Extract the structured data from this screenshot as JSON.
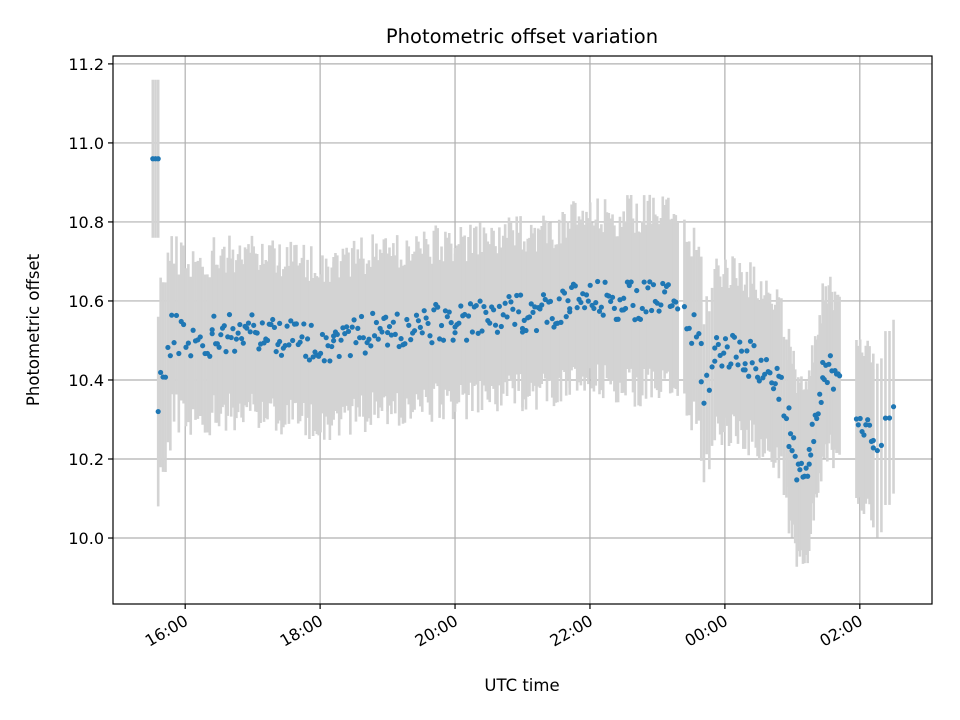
{
  "chart_data": {
    "type": "scatter",
    "title": "Photometric offset variation",
    "xlabel": "UTC time",
    "ylabel": "Photometric offset",
    "grid": true,
    "xlim_hours": [
      14.93,
      27.07
    ],
    "ylim": [
      9.833,
      11.22
    ],
    "x_ticks": [
      {
        "h": 16,
        "label": "16:00"
      },
      {
        "h": 18,
        "label": "18:00"
      },
      {
        "h": 20,
        "label": "20:00"
      },
      {
        "h": 22,
        "label": "22:00"
      },
      {
        "h": 24,
        "label": "00:00"
      },
      {
        "h": 26,
        "label": "02:00"
      }
    ],
    "y_ticks": [
      {
        "v": 10.0,
        "label": "10.0"
      },
      {
        "v": 10.2,
        "label": "10.2"
      },
      {
        "v": 10.4,
        "label": "10.4"
      },
      {
        "v": 10.6,
        "label": "10.6"
      },
      {
        "v": 10.8,
        "label": "10.8"
      },
      {
        "v": 11.0,
        "label": "11.0"
      },
      {
        "v": 11.2,
        "label": "11.2"
      }
    ],
    "colors": {
      "marker": "#1f77b4",
      "errorbar": "#d3d3d3",
      "grid": "#b0b0b0"
    },
    "segments": [
      {
        "t0": 15.52,
        "t1": 15.6,
        "n": 3,
        "start": 10.96,
        "end": 10.96,
        "err": 0.2
      },
      {
        "t0": 15.6,
        "t1": 15.78,
        "n": 6,
        "start": 10.37,
        "end": 10.48,
        "err": 0.24
      },
      {
        "t0": 15.8,
        "t1": 16.4,
        "n": 18,
        "start": 10.52,
        "end": 10.49,
        "err": 0.2
      },
      {
        "t0": 16.4,
        "t1": 17.4,
        "n": 40,
        "start": 10.52,
        "end": 10.52,
        "err": 0.2
      },
      {
        "t0": 17.4,
        "t1": 18.2,
        "n": 30,
        "start": 10.51,
        "end": 10.49,
        "err": 0.2
      },
      {
        "t0": 18.2,
        "t1": 19.0,
        "n": 30,
        "start": 10.5,
        "end": 10.53,
        "err": 0.2
      },
      {
        "t0": 19.0,
        "t1": 20.0,
        "n": 36,
        "start": 10.52,
        "end": 10.55,
        "err": 0.2
      },
      {
        "t0": 20.0,
        "t1": 21.0,
        "n": 36,
        "start": 10.54,
        "end": 10.57,
        "err": 0.2
      },
      {
        "t0": 21.0,
        "t1": 21.7,
        "n": 28,
        "start": 10.57,
        "end": 10.58,
        "err": 0.2
      },
      {
        "t0": 21.7,
        "t1": 22.5,
        "n": 30,
        "start": 10.6,
        "end": 10.6,
        "err": 0.21
      },
      {
        "t0": 22.5,
        "t1": 23.3,
        "n": 30,
        "start": 10.6,
        "end": 10.6,
        "err": 0.22
      },
      {
        "t0": 23.4,
        "t1": 23.65,
        "n": 8,
        "start": 10.55,
        "end": 10.49,
        "err": 0.22
      },
      {
        "t0": 23.65,
        "t1": 23.85,
        "n": 6,
        "start": 10.37,
        "end": 10.43,
        "err": 0.2
      },
      {
        "t0": 23.85,
        "t1": 24.3,
        "n": 18,
        "start": 10.48,
        "end": 10.47,
        "err": 0.2
      },
      {
        "t0": 24.3,
        "t1": 24.8,
        "n": 20,
        "start": 10.46,
        "end": 10.4,
        "err": 0.2
      },
      {
        "t0": 24.8,
        "t1": 24.95,
        "n": 5,
        "start": 10.4,
        "end": 10.3,
        "err": 0.2
      },
      {
        "t0": 24.95,
        "t1": 25.25,
        "n": 14,
        "start": 10.23,
        "end": 10.14,
        "err": 0.22
      },
      {
        "t0": 25.25,
        "t1": 25.45,
        "n": 10,
        "start": 10.2,
        "end": 10.38,
        "err": 0.2
      },
      {
        "t0": 25.45,
        "t1": 25.7,
        "n": 12,
        "start": 10.4,
        "end": 10.44,
        "err": 0.2
      },
      {
        "t0": 25.95,
        "t1": 26.2,
        "n": 10,
        "start": 10.33,
        "end": 10.22,
        "err": 0.2
      },
      {
        "t0": 26.2,
        "t1": 26.5,
        "n": 6,
        "start": 10.25,
        "end": 10.31,
        "err": 0.22
      }
    ]
  }
}
